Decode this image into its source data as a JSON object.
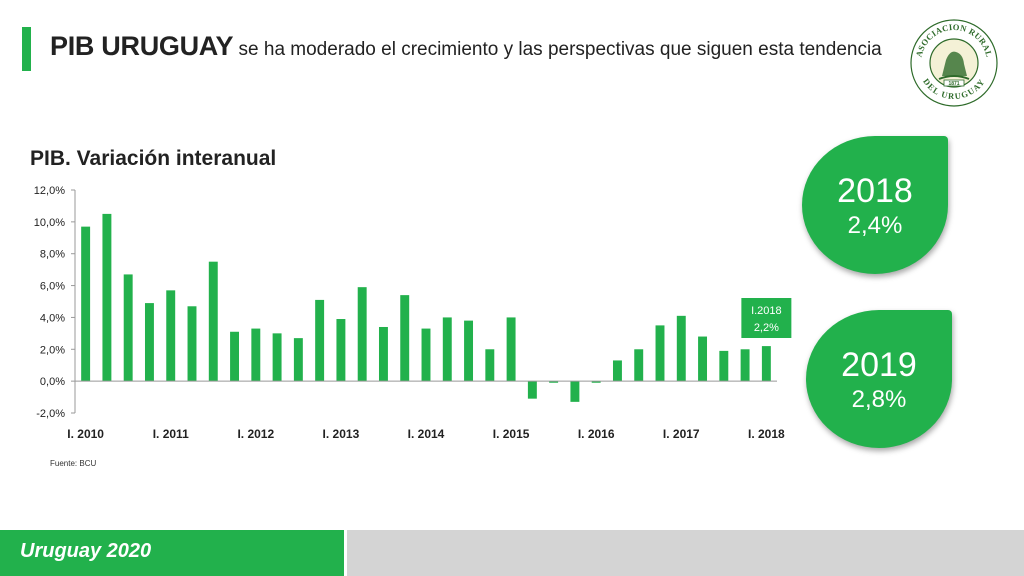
{
  "header": {
    "title_strong": "PIB URUGUAY",
    "title_rest": "se ha moderado el crecimiento y las perspectivas que siguen esta tendencia"
  },
  "logo": {
    "top_text": "ASOCIACION RURAL",
    "bottom_text": "DEL URUGUAY",
    "year": "1871"
  },
  "projections": [
    {
      "year": "2018",
      "value": "2,4%"
    },
    {
      "year": "2019",
      "value": "2,8%"
    }
  ],
  "footer": {
    "brand": "Uruguay 2020"
  },
  "colors": {
    "accent": "#22b14c",
    "footer_gray": "#d4d4d4",
    "text": "#222222"
  },
  "chart_data": {
    "type": "bar",
    "title": "PIB. Variación interanual",
    "source": "Fuente: BCU",
    "xlabel": "",
    "ylabel": "",
    "ylim": [
      -2,
      12
    ],
    "ytick_values": [
      -2,
      0,
      2,
      4,
      6,
      8,
      10,
      12
    ],
    "ytick_labels": [
      "-2,0%",
      "0,0%",
      "2,0%",
      "4,0%",
      "6,0%",
      "8,0%",
      "10,0%",
      "12,0%"
    ],
    "categories": [
      "I. 2010",
      "II. 2010",
      "III. 2010",
      "IV. 2010",
      "I. 2011",
      "II. 2011",
      "III. 2011",
      "IV. 2011",
      "I. 2012",
      "II. 2012",
      "III. 2012",
      "IV. 2012",
      "I. 2013",
      "II. 2013",
      "III. 2013",
      "IV. 2013",
      "I. 2014",
      "II. 2014",
      "III. 2014",
      "IV. 2014",
      "I. 2015",
      "II. 2015",
      "III. 2015",
      "IV. 2015",
      "I. 2016",
      "II. 2016",
      "III. 2016",
      "IV. 2016",
      "I. 2017",
      "II. 2017",
      "III. 2017",
      "IV. 2017",
      "I. 2018"
    ],
    "xtick_labels": [
      "I. 2010",
      "I. 2011",
      "I. 2012",
      "I. 2013",
      "I. 2014",
      "I. 2015",
      "I. 2016",
      "I. 2017",
      "I. 2018"
    ],
    "values": [
      9.7,
      10.5,
      6.7,
      4.9,
      5.7,
      4.7,
      7.5,
      3.1,
      3.3,
      3.0,
      2.7,
      5.1,
      3.9,
      5.9,
      3.4,
      5.4,
      3.3,
      4.0,
      3.8,
      2.0,
      4.0,
      -1.1,
      -0.1,
      -1.3,
      -0.1,
      1.3,
      2.0,
      3.5,
      4.1,
      2.8,
      1.9,
      2.0,
      2.2
    ],
    "annotation": {
      "category_index": 32,
      "line1": "I.2018",
      "line2": "2,2%"
    },
    "bar_color": "#22b14c",
    "grid": false
  }
}
